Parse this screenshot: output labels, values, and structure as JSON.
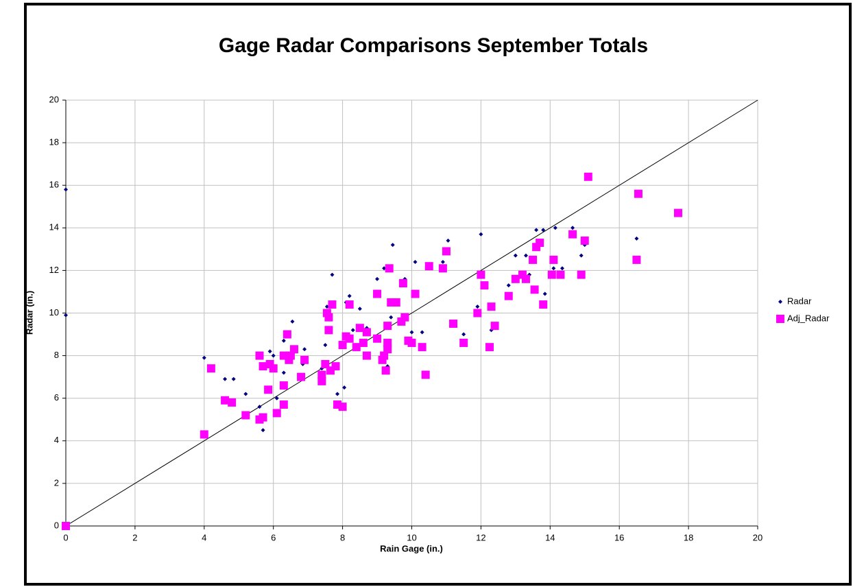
{
  "chart_data": {
    "type": "scatter",
    "title": "Gage Radar Comparisons September Totals",
    "x_label": "Rain Gage (in.)",
    "y_label": "Radar (in.)",
    "xlim": [
      0,
      20
    ],
    "xticks": [
      0,
      2,
      4,
      6,
      8,
      10,
      12,
      14,
      16,
      18,
      20
    ],
    "ylim": [
      0,
      20
    ],
    "yticks": [
      0,
      2,
      4,
      6,
      8,
      10,
      12,
      14,
      16,
      18,
      20
    ],
    "grid": true,
    "legend": "right",
    "series": [
      {
        "name": "Radar",
        "color": "#000080",
        "marker": "diamond",
        "x": [
          0,
          0,
          0,
          4,
          4.6,
          4.85,
          5.2,
          5.6,
          5.7,
          5.9,
          6.0,
          6.1,
          6.3,
          6.3,
          6.55,
          6.85,
          6.9,
          7.4,
          7.5,
          7.55,
          7.7,
          7.85,
          8.05,
          8.1,
          8.2,
          8.3,
          8.5,
          8.7,
          9.0,
          9.2,
          9.3,
          9.4,
          9.45,
          9.6,
          9.8,
          10.0,
          10.1,
          10.3,
          10.5,
          10.9,
          11.05,
          11.5,
          11.9,
          12.0,
          12.15,
          12.3,
          12.8,
          13.0,
          13.3,
          13.4,
          13.6,
          13.6,
          13.8,
          13.85,
          14.1,
          14.15,
          14.35,
          14.65,
          14.9,
          15.0,
          16.5
        ],
        "values": [
          15.8,
          9.9,
          0,
          7.9,
          6.9,
          6.9,
          6.2,
          5.6,
          4.5,
          8.2,
          8.0,
          6.0,
          7.2,
          8.7,
          9.6,
          7.6,
          8.3,
          7.4,
          8.5,
          10.3,
          11.8,
          6.2,
          6.5,
          10.5,
          10.8,
          9.2,
          10.2,
          9.3,
          11.6,
          12.1,
          7.5,
          9.8,
          13.2,
          10.5,
          11.6,
          9.1,
          12.4,
          9.1,
          12.3,
          12.4,
          13.4,
          9.0,
          10.3,
          13.7,
          11.4,
          9.2,
          11.3,
          12.7,
          12.7,
          11.8,
          13.9,
          11.0,
          13.9,
          10.9,
          12.1,
          14.0,
          12.1,
          14.0,
          12.7,
          13.2,
          13.5
        ]
      },
      {
        "name": "Adj_Radar",
        "color": "#ff00ff",
        "marker": "square",
        "x": [
          0,
          4,
          4.2,
          4.6,
          4.8,
          5.2,
          5.6,
          5.7,
          5.6,
          5.7,
          5.85,
          5.9,
          6.0,
          6.1,
          6.3,
          6.3,
          6.3,
          6.4,
          6.45,
          6.5,
          6.6,
          6.8,
          6.9,
          7.4,
          7.4,
          7.5,
          7.55,
          7.6,
          7.6,
          7.7,
          7.65,
          7.8,
          7.85,
          8.0,
          8.0,
          8.1,
          8.2,
          8.2,
          8.4,
          8.5,
          8.6,
          8.7,
          8.7,
          9.0,
          9.0,
          9.15,
          9.2,
          9.25,
          9.3,
          9.3,
          9.3,
          9.35,
          9.4,
          9.55,
          9.7,
          9.75,
          9.8,
          9.9,
          10.0,
          10.1,
          10.3,
          10.4,
          10.5,
          10.9,
          11.0,
          11.2,
          11.5,
          11.9,
          12.0,
          12.1,
          12.25,
          12.3,
          12.4,
          12.8,
          13.0,
          13.2,
          13.3,
          13.5,
          13.55,
          13.6,
          13.7,
          13.8,
          14.05,
          14.1,
          14.3,
          14.65,
          14.9,
          15.0,
          15.1,
          16.5,
          16.55,
          17.7
        ],
        "values": [
          0,
          4.3,
          7.4,
          5.9,
          5.8,
          5.2,
          5.0,
          5.1,
          8.0,
          7.5,
          6.4,
          7.6,
          7.4,
          5.3,
          5.7,
          6.6,
          8.0,
          9.0,
          7.8,
          8.0,
          8.3,
          7.0,
          7.8,
          6.8,
          7.1,
          7.6,
          10.0,
          9.2,
          9.8,
          10.4,
          7.3,
          7.5,
          5.7,
          5.6,
          8.5,
          8.9,
          8.8,
          10.4,
          8.4,
          9.3,
          8.6,
          9.1,
          8.0,
          10.9,
          8.8,
          7.8,
          8.0,
          7.3,
          8.3,
          8.6,
          9.4,
          12.1,
          10.5,
          10.5,
          9.6,
          11.4,
          9.8,
          8.7,
          8.6,
          10.9,
          8.4,
          7.1,
          12.2,
          12.1,
          12.9,
          9.5,
          8.6,
          10.0,
          11.8,
          11.3,
          8.4,
          10.3,
          9.4,
          10.8,
          11.6,
          11.8,
          11.6,
          12.5,
          11.1,
          13.1,
          13.3,
          10.4,
          11.8,
          12.5,
          11.8,
          13.7,
          11.8,
          13.4,
          16.4,
          12.5,
          15.6,
          14.7
        ]
      }
    ]
  }
}
